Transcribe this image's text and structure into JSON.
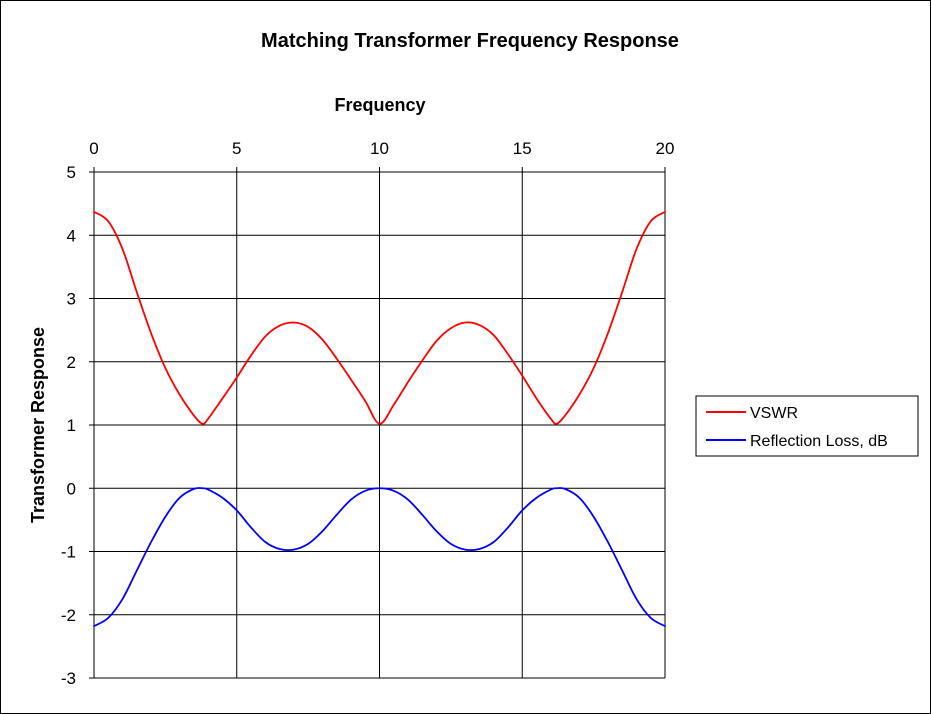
{
  "chart_data": {
    "type": "line",
    "title": "Matching Transformer Frequency Response",
    "xlabel": "Frequency",
    "ylabel": "Transformer  Response",
    "xlim": [
      0,
      20
    ],
    "ylim": [
      -3,
      5
    ],
    "x_ticks": [
      0,
      5,
      10,
      15,
      20
    ],
    "y_ticks": [
      5,
      4,
      3,
      2,
      1,
      0,
      -1,
      -2,
      -3
    ],
    "x_axis_position": "top",
    "grid": true,
    "legend_position": "right",
    "x": [
      0,
      0.5,
      1,
      1.5,
      2,
      2.5,
      3,
      3.5,
      3.8,
      4,
      4.5,
      5,
      5.5,
      6,
      6.5,
      7,
      7.5,
      8,
      8.5,
      9,
      9.5,
      10,
      10.5,
      11,
      11.5,
      12,
      12.5,
      13,
      13.5,
      14,
      14.5,
      15,
      15.5,
      16,
      16.2,
      16.5,
      17,
      17.5,
      18,
      18.5,
      19,
      19.5,
      20
    ],
    "series": [
      {
        "name": "VSWR",
        "color": "#ff0000",
        "values": [
          4.37,
          4.22,
          3.78,
          3.1,
          2.45,
          1.9,
          1.48,
          1.15,
          1.02,
          1.1,
          1.42,
          1.75,
          2.1,
          2.4,
          2.57,
          2.62,
          2.55,
          2.35,
          2.05,
          1.72,
          1.38,
          1.02,
          1.32,
          1.68,
          2.02,
          2.33,
          2.53,
          2.62,
          2.58,
          2.42,
          2.12,
          1.78,
          1.42,
          1.1,
          1.02,
          1.15,
          1.48,
          1.9,
          2.45,
          3.1,
          3.78,
          4.22,
          4.37
        ]
      },
      {
        "name": "Reflection Loss, dB",
        "color": "#0000ff",
        "values": [
          -2.18,
          -2.05,
          -1.75,
          -1.3,
          -0.85,
          -0.45,
          -0.15,
          -0.01,
          0,
          -0.02,
          -0.15,
          -0.35,
          -0.62,
          -0.85,
          -0.96,
          -0.97,
          -0.88,
          -0.68,
          -0.42,
          -0.18,
          -0.04,
          0,
          -0.04,
          -0.18,
          -0.42,
          -0.68,
          -0.88,
          -0.97,
          -0.96,
          -0.85,
          -0.62,
          -0.35,
          -0.15,
          -0.02,
          0,
          -0.01,
          -0.15,
          -0.45,
          -0.85,
          -1.3,
          -1.75,
          -2.05,
          -2.18
        ]
      }
    ]
  }
}
